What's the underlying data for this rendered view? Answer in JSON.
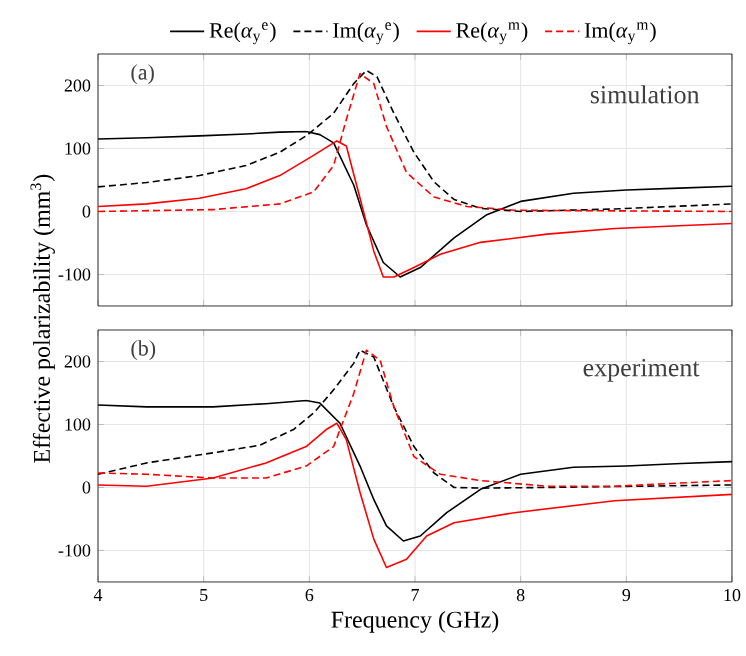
{
  "chart_data": [
    {
      "type": "line",
      "ylabel": "Effective polarizability (mm$^{3}$)",
      "xlim": [
        4,
        10
      ],
      "ylim": [
        -150,
        250
      ],
      "xticks": [
        4,
        5,
        6,
        7,
        8,
        9,
        10
      ],
      "yticks": [
        -100,
        0,
        100,
        200
      ],
      "grid": true,
      "legend": "top",
      "tick_labels": "y",
      "annotations": [
        "(a)",
        "simulation"
      ],
      "series": [
        {
          "name": "Re(*α*$_{y}$$^{e}$)",
          "color": "#000000",
          "line_style": "solid",
          "x": [
            4,
            4.46,
            4.96,
            5.4,
            5.72,
            5.97,
            6.1,
            6.23,
            6.42,
            6.54,
            6.7,
            6.86,
            7.05,
            7.37,
            7.68,
            8.0,
            8.5,
            9.0,
            9.5,
            10
          ],
          "values": [
            115,
            117,
            120,
            123,
            126,
            127,
            122,
            109,
            42,
            -21,
            -81,
            -104,
            -89,
            -42,
            -5,
            16,
            29,
            34,
            37,
            40
          ]
        },
        {
          "name": "Im(*α*$_{y}$$^{e}$)",
          "color": "#000000",
          "line_style": "dashed",
          "x": [
            4,
            4.46,
            4.96,
            5.4,
            5.72,
            5.97,
            6.23,
            6.42,
            6.54,
            6.64,
            6.8,
            6.99,
            7.18,
            7.37,
            7.62,
            8.0,
            8.89,
            10
          ],
          "values": [
            39,
            46,
            57,
            73,
            94,
            120,
            156,
            203,
            224,
            214,
            156,
            94,
            47,
            19,
            5,
            0,
            4,
            12
          ]
        },
        {
          "name": "Re(*α*$_{y}$$^{m}$)",
          "color": "#ff0000",
          "line_style": "solid",
          "x": [
            4,
            4.46,
            4.96,
            5.4,
            5.72,
            6.04,
            6.26,
            6.35,
            6.48,
            6.61,
            6.7,
            6.8,
            6.99,
            7.24,
            7.62,
            8.25,
            8.89,
            10
          ],
          "values": [
            8,
            12,
            21,
            36,
            57,
            89,
            112,
            104,
            21,
            -63,
            -104,
            -104,
            -89,
            -68,
            -49,
            -36,
            -27,
            -19
          ]
        },
        {
          "name": "Im(*α*$_{y}$$^{m}$)",
          "color": "#ff0000",
          "line_style": "dashed",
          "x": [
            4,
            5.09,
            5.72,
            6.04,
            6.23,
            6.35,
            6.48,
            6.61,
            6.73,
            6.92,
            7.18,
            7.49,
            7.94,
            8.89,
            10
          ],
          "values": [
            0,
            3,
            12,
            31,
            73,
            146,
            219,
            203,
            135,
            62,
            23,
            8,
            2,
            1,
            0
          ]
        }
      ]
    },
    {
      "type": "line",
      "xlabel": "Frequency (GHz)",
      "xlim": [
        4,
        10
      ],
      "ylim": [
        -150,
        250
      ],
      "xticks": [
        4,
        5,
        6,
        7,
        8,
        9,
        10
      ],
      "yticks": [
        -100,
        0,
        100,
        200
      ],
      "grid": true,
      "annotations": [
        "(b)",
        "experiment"
      ],
      "series": [
        {
          "color": "#000000",
          "line_style": "solid",
          "x": [
            4,
            4.46,
            5.09,
            5.59,
            5.97,
            6.1,
            6.29,
            6.48,
            6.61,
            6.73,
            6.89,
            7.05,
            7.3,
            7.62,
            8.0,
            8.5,
            9.0,
            9.52,
            10
          ],
          "values": [
            131,
            128,
            128,
            133,
            138,
            134,
            102,
            34,
            -19,
            -61,
            -85,
            -77,
            -40,
            -3,
            21,
            32,
            34,
            38,
            41
          ]
        },
        {
          "color": "#000000",
          "line_style": "dashed",
          "x": [
            4,
            4.46,
            5.09,
            5.53,
            5.85,
            6.04,
            6.23,
            6.42,
            6.48,
            6.61,
            6.8,
            6.99,
            7.18,
            7.37,
            7.62,
            8.25,
            10
          ],
          "values": [
            21,
            39,
            55,
            67,
            92,
            118,
            155,
            197,
            218,
            207,
            128,
            65,
            23,
            0,
            -1,
            0,
            4
          ]
        },
        {
          "color": "#ff0000",
          "line_style": "solid",
          "x": [
            4,
            4.46,
            5.09,
            5.59,
            5.97,
            6.16,
            6.26,
            6.35,
            6.48,
            6.61,
            6.73,
            6.92,
            7.11,
            7.37,
            7.94,
            8.89,
            10
          ],
          "values": [
            4,
            2,
            15,
            39,
            65,
            92,
            102,
            76,
            -8,
            -82,
            -127,
            -114,
            -77,
            -56,
            -40,
            -21,
            -11
          ]
        },
        {
          "color": "#ff0000",
          "line_style": "dashed",
          "x": [
            4,
            4.46,
            5.09,
            5.59,
            5.97,
            6.23,
            6.42,
            6.54,
            6.67,
            6.8,
            6.99,
            7.24,
            7.62,
            8.25,
            8.89,
            10
          ],
          "values": [
            23,
            21,
            15,
            15,
            34,
            65,
            149,
            218,
            202,
            128,
            49,
            21,
            11,
            2,
            2,
            11
          ]
        }
      ]
    }
  ]
}
